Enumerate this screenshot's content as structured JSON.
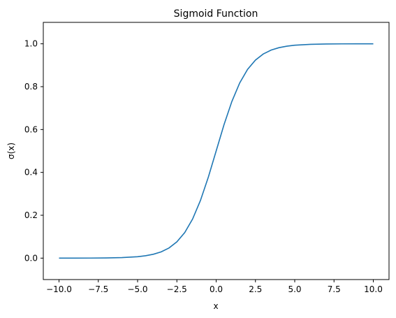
{
  "chart_data": {
    "type": "line",
    "title": "Sigmoid Function",
    "xlabel": "x",
    "ylabel": "σ(x)",
    "xlim": [
      -11,
      11
    ],
    "ylim": [
      -0.1,
      1.1
    ],
    "xticks": [
      -10.0,
      -7.5,
      -5.0,
      -2.5,
      0.0,
      2.5,
      5.0,
      7.5,
      10.0
    ],
    "xtick_labels": [
      "−10.0",
      "−7.5",
      "−5.0",
      "−2.5",
      "0.0",
      "2.5",
      "5.0",
      "7.5",
      "10.0"
    ],
    "yticks": [
      0.0,
      0.2,
      0.4,
      0.6,
      0.8,
      1.0
    ],
    "ytick_labels": [
      "0.0",
      "0.2",
      "0.4",
      "0.6",
      "0.8",
      "1.0"
    ],
    "grid": false,
    "series": [
      {
        "color": "#1f77b4",
        "x": [
          -10,
          -9,
          -8,
          -7,
          -6,
          -5,
          -4.5,
          -4,
          -3.5,
          -3,
          -2.5,
          -2,
          -1.5,
          -1,
          -0.5,
          0,
          0.5,
          1,
          1.5,
          2,
          2.5,
          3,
          3.5,
          4,
          4.5,
          5,
          6,
          7,
          8,
          9,
          10
        ],
        "y": [
          0.0,
          0.0001,
          0.0003,
          0.0009,
          0.0025,
          0.0067,
          0.011,
          0.018,
          0.0293,
          0.0474,
          0.0759,
          0.1192,
          0.1824,
          0.2689,
          0.3775,
          0.5,
          0.6225,
          0.7311,
          0.8176,
          0.8808,
          0.9241,
          0.9526,
          0.9707,
          0.982,
          0.989,
          0.9933,
          0.9975,
          0.9991,
          0.9997,
          0.9999,
          1.0
        ]
      }
    ]
  }
}
